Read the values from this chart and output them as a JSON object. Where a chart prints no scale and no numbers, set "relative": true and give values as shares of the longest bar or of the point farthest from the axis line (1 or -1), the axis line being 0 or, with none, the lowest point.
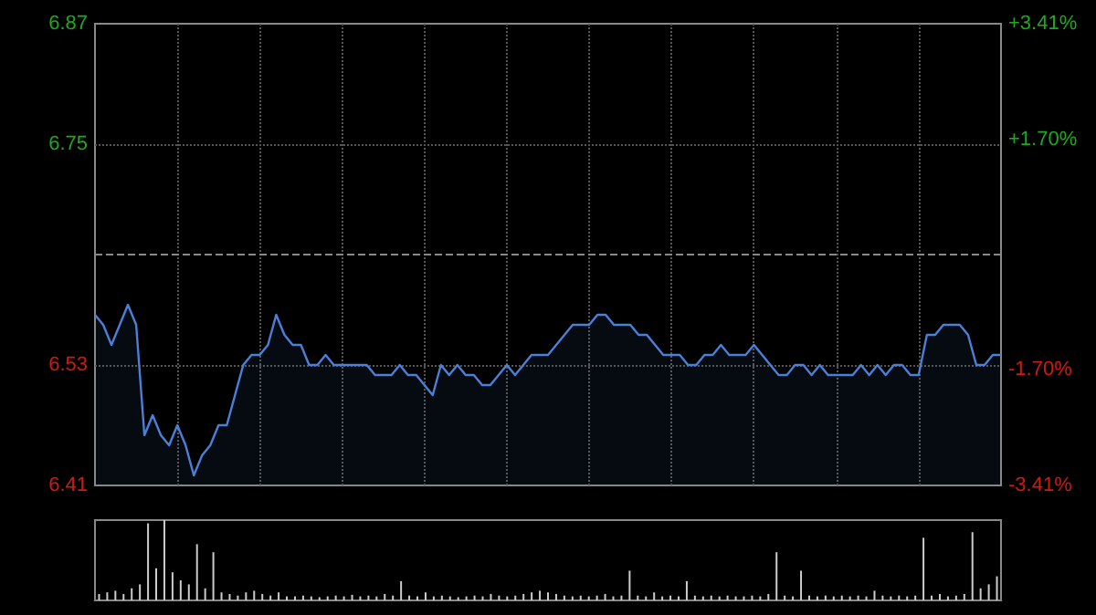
{
  "chart_data": [
    {
      "type": "area",
      "categories": [
        null,
        null,
        null,
        null,
        null,
        null,
        null,
        null,
        null,
        null,
        null,
        null,
        null,
        null,
        null,
        null,
        null,
        null,
        null,
        null,
        null,
        null,
        null,
        null,
        null,
        null,
        null,
        null,
        null,
        null,
        null,
        null,
        null,
        null,
        null,
        null,
        null,
        null,
        null,
        null,
        null,
        null,
        null,
        null,
        null,
        null,
        null,
        null,
        null,
        null,
        null,
        null,
        null,
        null,
        null,
        null,
        null,
        null,
        null,
        null,
        null,
        null,
        null,
        null,
        null,
        null,
        null,
        null,
        null,
        null,
        null,
        null,
        null,
        null,
        null,
        null,
        null,
        null,
        null,
        null,
        null,
        null,
        null,
        null,
        null,
        null,
        null,
        null,
        null,
        null,
        null,
        null,
        null,
        null,
        null,
        null,
        null,
        null,
        null,
        null,
        null,
        null,
        null,
        null,
        null,
        null,
        null,
        null,
        null,
        null,
        null
      ],
      "values": [
        6.58,
        6.57,
        6.55,
        6.57,
        6.59,
        6.57,
        6.46,
        6.48,
        6.46,
        6.45,
        6.47,
        6.45,
        6.42,
        6.44,
        6.45,
        6.47,
        6.47,
        6.5,
        6.53,
        6.54,
        6.54,
        6.55,
        6.58,
        6.56,
        6.55,
        6.55,
        6.53,
        6.53,
        6.54,
        6.53,
        6.53,
        6.53,
        6.53,
        6.53,
        6.52,
        6.52,
        6.52,
        6.53,
        6.52,
        6.52,
        6.51,
        6.5,
        6.53,
        6.52,
        6.53,
        6.52,
        6.52,
        6.51,
        6.51,
        6.52,
        6.53,
        6.52,
        6.53,
        6.54,
        6.54,
        6.54,
        6.55,
        6.56,
        6.57,
        6.57,
        6.57,
        6.58,
        6.58,
        6.57,
        6.57,
        6.57,
        6.56,
        6.56,
        6.55,
        6.54,
        6.54,
        6.54,
        6.53,
        6.53,
        6.54,
        6.54,
        6.55,
        6.54,
        6.54,
        6.54,
        6.55,
        6.54,
        6.53,
        6.52,
        6.52,
        6.53,
        6.53,
        6.52,
        6.53,
        6.52,
        6.52,
        6.52,
        6.52,
        6.53,
        6.52,
        6.53,
        6.52,
        6.53,
        6.53,
        6.52,
        6.52,
        6.56,
        6.56,
        6.57,
        6.57,
        6.57,
        6.56,
        6.53,
        6.53,
        6.54,
        6.54
      ],
      "color": "#4a80d8",
      "ylim": [
        6.41,
        6.87
      ],
      "yticks": [
        6.41,
        6.53,
        6.75,
        6.87
      ],
      "y2lim": [
        -3.41,
        3.41
      ],
      "y2ticks": [
        {
          "value": -3.41,
          "label": "-3.41%"
        },
        {
          "value": -1.7,
          "label": "-1.70%"
        },
        {
          "value": 1.7,
          "label": "+1.70%"
        },
        {
          "value": 3.41,
          "label": "+3.41%"
        }
      ],
      "ref_lines": [
        {
          "axis": "y",
          "value": 6.64,
          "color": "#888888",
          "line_style": "dashed"
        }
      ],
      "grid": true,
      "tick_labels": "y"
    },
    {
      "type": "bar",
      "relative": true,
      "color": "#cccccc",
      "categories": [
        null,
        null,
        null,
        null,
        null,
        null,
        null,
        null,
        null,
        null,
        null,
        null,
        null,
        null,
        null,
        null,
        null,
        null,
        null,
        null,
        null,
        null,
        null,
        null,
        null,
        null,
        null,
        null,
        null,
        null,
        null,
        null,
        null,
        null,
        null,
        null,
        null,
        null,
        null,
        null,
        null,
        null,
        null,
        null,
        null,
        null,
        null,
        null,
        null,
        null,
        null,
        null,
        null,
        null,
        null,
        null,
        null,
        null,
        null,
        null,
        null,
        null,
        null,
        null,
        null,
        null,
        null,
        null,
        null,
        null,
        null,
        null,
        null,
        null,
        null,
        null,
        null,
        null,
        null,
        null,
        null,
        null,
        null,
        null,
        null,
        null,
        null,
        null,
        null,
        null,
        null,
        null,
        null,
        null,
        null,
        null,
        null,
        null,
        null,
        null,
        null,
        null,
        null,
        null,
        null,
        null,
        null,
        null,
        null,
        null,
        null
      ],
      "values": [
        0.08,
        0.1,
        0.12,
        0.08,
        0.15,
        0.2,
        0.96,
        0.4,
        1,
        0.35,
        0.25,
        0.2,
        0.7,
        0.15,
        0.6,
        0.1,
        0.08,
        0.06,
        0.1,
        0.12,
        0.08,
        0.06,
        0.1,
        0.05,
        0.05,
        0.06,
        0.05,
        0.04,
        0.05,
        0.06,
        0.05,
        0.07,
        0.05,
        0.06,
        0.05,
        0.08,
        0.06,
        0.24,
        0.06,
        0.05,
        0.1,
        0.05,
        0.06,
        0.05,
        0.04,
        0.05,
        0.06,
        0.05,
        0.08,
        0.06,
        0.05,
        0.06,
        0.08,
        0.1,
        0.12,
        0.1,
        0.08,
        0.06,
        0.05,
        0.06,
        0.05,
        0.06,
        0.08,
        0.05,
        0.06,
        0.37,
        0.06,
        0.05,
        0.1,
        0.05,
        0.06,
        0.05,
        0.24,
        0.06,
        0.05,
        0.06,
        0.05,
        0.06,
        0.05,
        0.05,
        0.06,
        0.05,
        0.08,
        0.6,
        0.06,
        0.05,
        0.37,
        0.06,
        0.05,
        0.06,
        0.05,
        0.06,
        0.05,
        0.06,
        0.05,
        0.12,
        0.06,
        0.05,
        0.06,
        0.05,
        0.06,
        0.78,
        0.06,
        0.08,
        0.05,
        0.06,
        0.08,
        0.85,
        0.15,
        0.2,
        0.3
      ],
      "grid": false
    }
  ]
}
